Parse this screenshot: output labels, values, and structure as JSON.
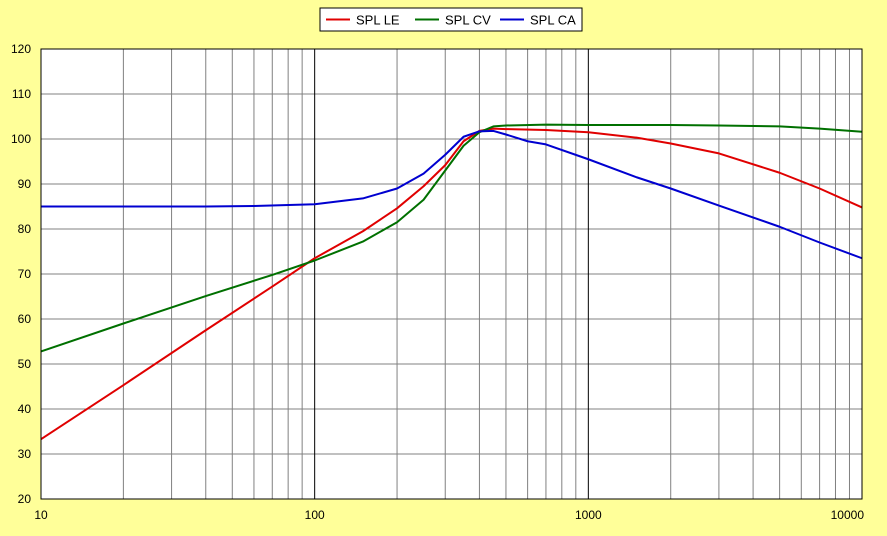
{
  "chart_data": {
    "type": "line",
    "title": "",
    "xlabel": "",
    "ylabel": "",
    "x_scale": "log",
    "xlim": [
      10,
      10000
    ],
    "ylim": [
      20,
      120
    ],
    "grid": true,
    "legend_position": "top-center",
    "x_tick_labels": [
      "10",
      "100",
      "1000",
      "10000"
    ],
    "y_tick_labels": [
      "20",
      "30",
      "40",
      "50",
      "60",
      "70",
      "80",
      "90",
      "100",
      "110",
      "120"
    ],
    "background_color": "#FFFF99",
    "plot_background_color": "#FFFFFF",
    "series": [
      {
        "name": "SPL LE",
        "color": "#E00000",
        "x": [
          10,
          20,
          40,
          70,
          100,
          150,
          200,
          250,
          300,
          350,
          400,
          450,
          500,
          700,
          1000,
          1500,
          2000,
          3000,
          5000,
          7000,
          10000
        ],
        "y": [
          33.3,
          45.3,
          57.5,
          67.2,
          73.5,
          79.5,
          84.6,
          89.5,
          94.2,
          99.5,
          101.8,
          102.3,
          102.2,
          102.0,
          101.5,
          100.3,
          99.0,
          96.8,
          92.5,
          89.0,
          84.8
        ]
      },
      {
        "name": "SPL CV",
        "color": "#007000",
        "x": [
          10,
          20,
          40,
          70,
          100,
          150,
          200,
          250,
          300,
          350,
          400,
          450,
          500,
          700,
          1000,
          2000,
          3000,
          5000,
          7000,
          10000
        ],
        "y": [
          52.8,
          59.0,
          65.1,
          69.8,
          73.0,
          77.2,
          81.5,
          86.5,
          93.0,
          98.5,
          101.5,
          102.8,
          103.0,
          103.2,
          103.1,
          103.1,
          103.0,
          102.8,
          102.3,
          101.6
        ]
      },
      {
        "name": "SPL CA",
        "color": "#0000D0",
        "x": [
          10,
          20,
          40,
          60,
          100,
          150,
          200,
          250,
          300,
          350,
          400,
          450,
          500,
          600,
          700,
          1000,
          1500,
          2000,
          3000,
          5000,
          7000,
          10000
        ],
        "y": [
          85.0,
          85.0,
          85.0,
          85.1,
          85.5,
          86.8,
          89.0,
          92.3,
          96.5,
          100.5,
          101.7,
          101.8,
          101.0,
          99.5,
          98.8,
          95.5,
          91.5,
          89.0,
          85.2,
          80.5,
          77.0,
          73.5
        ]
      }
    ]
  }
}
